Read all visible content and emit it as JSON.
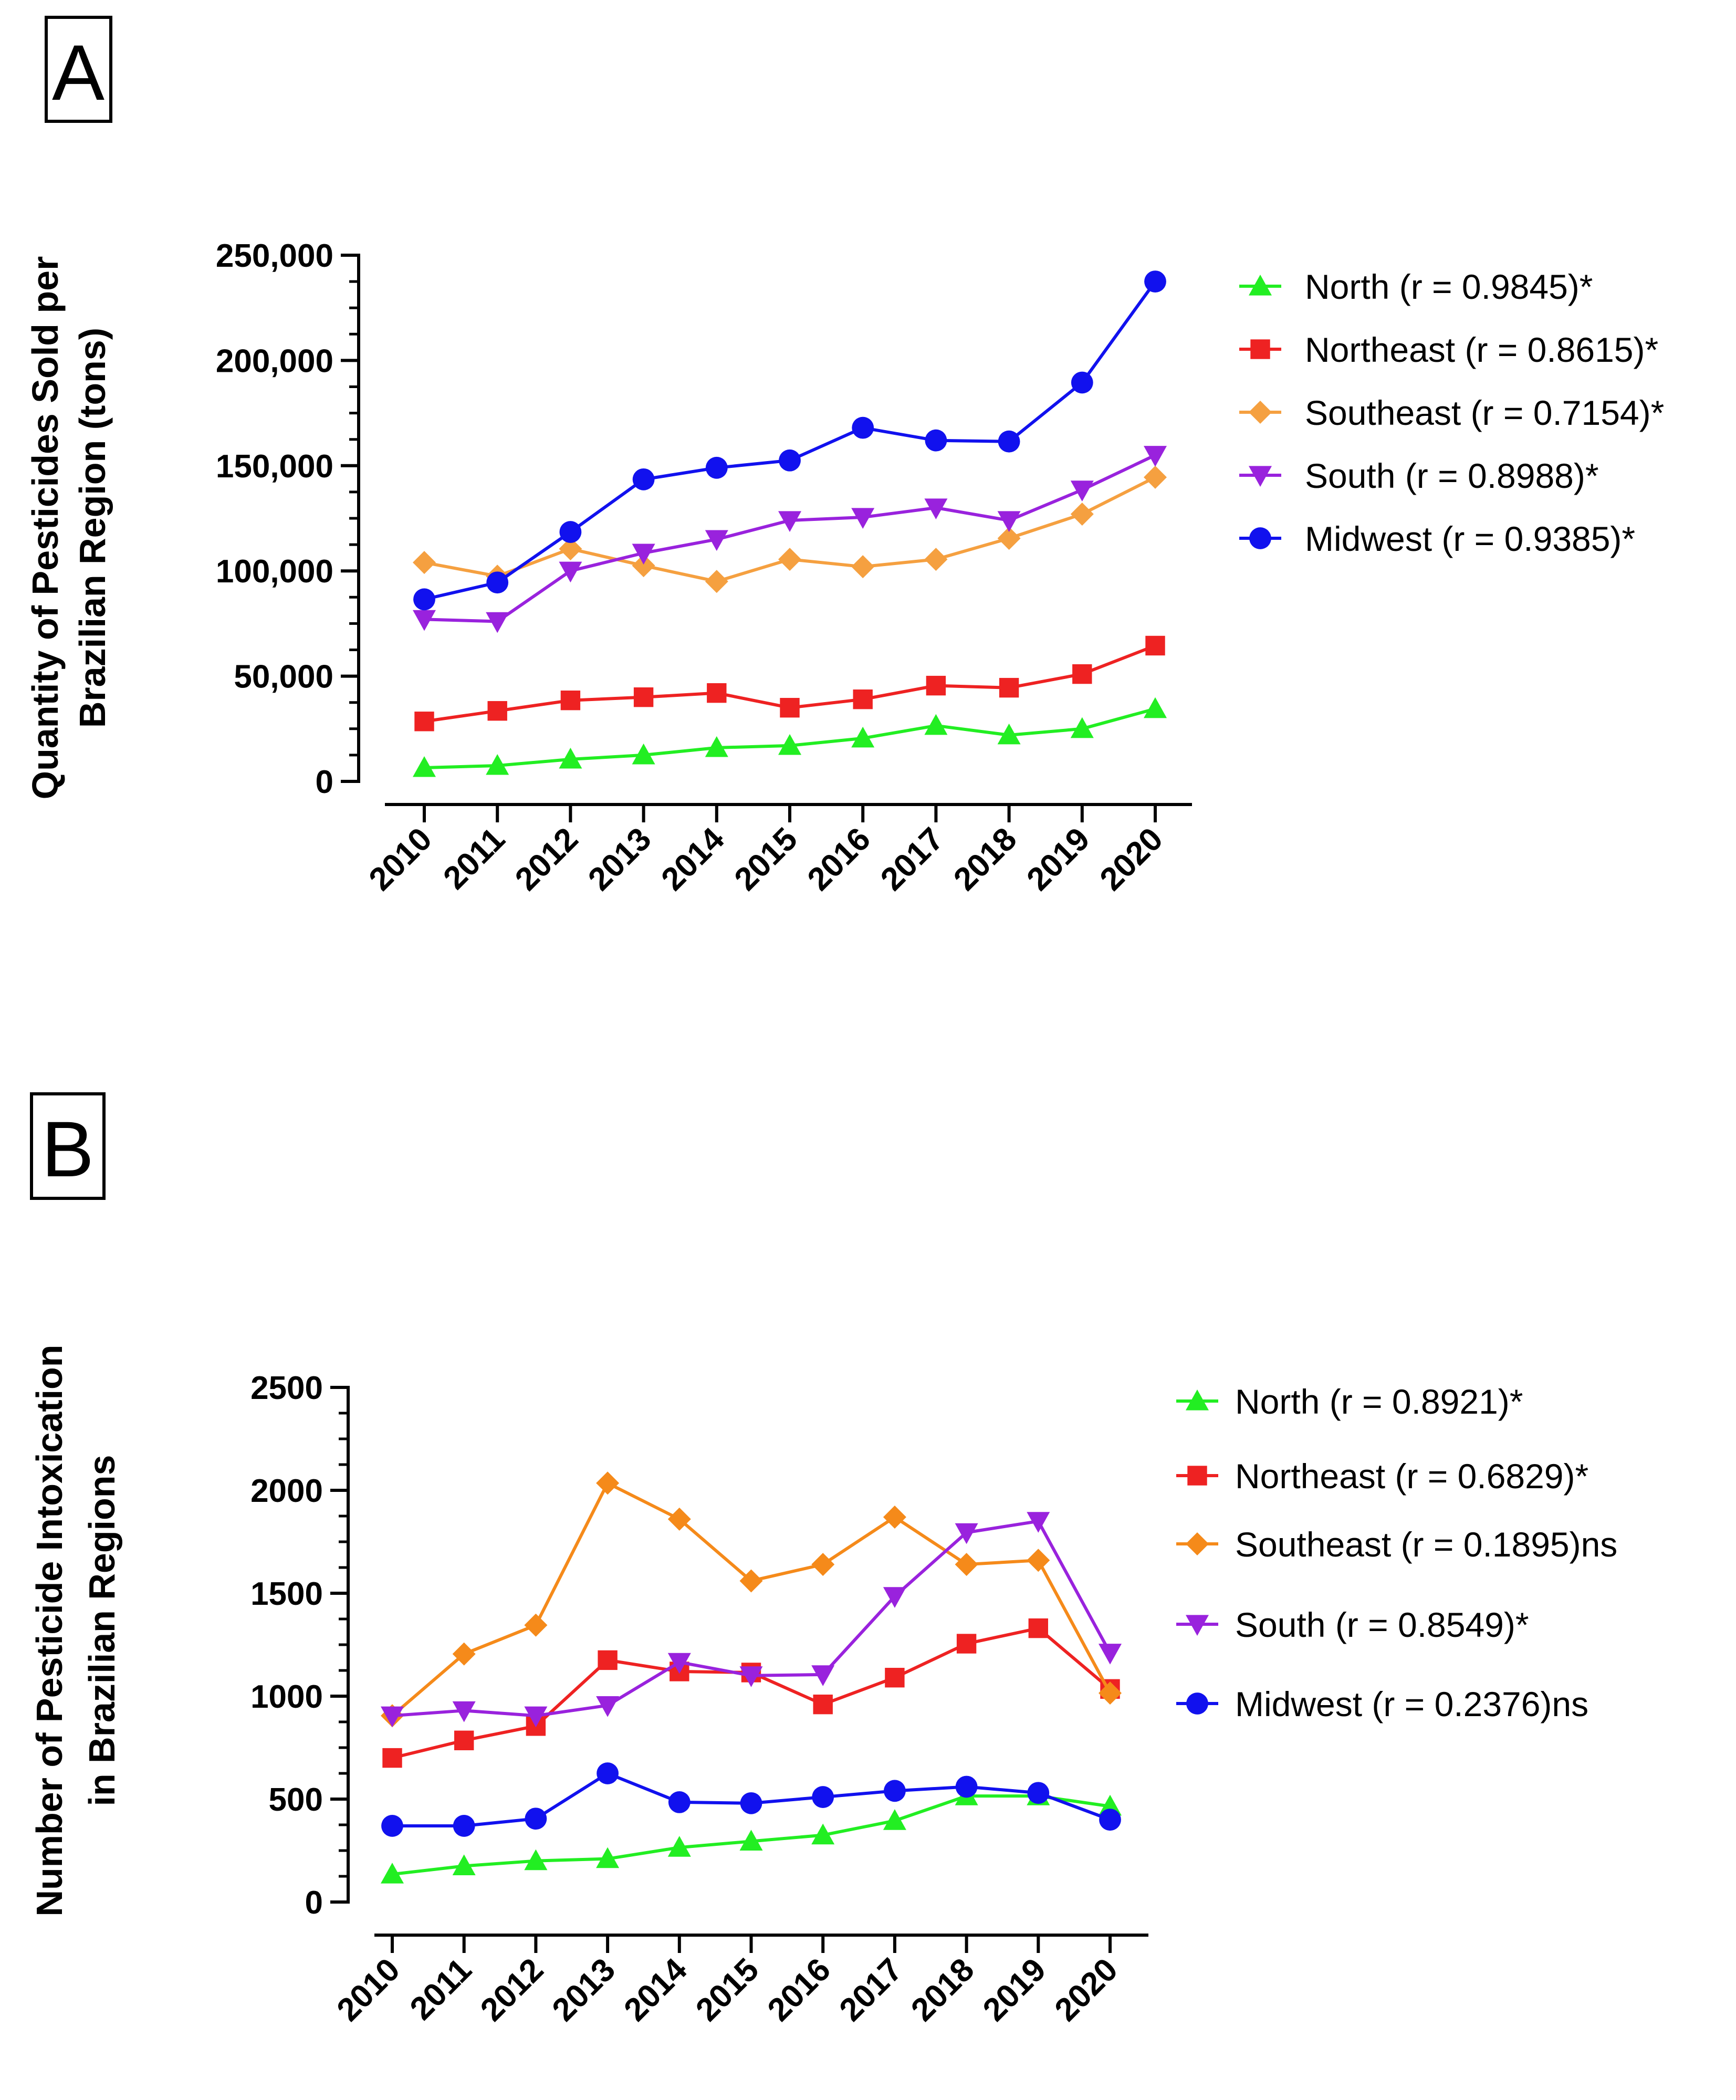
{
  "chart_data": [
    {
      "type": "line",
      "panel_label": "A",
      "title": "",
      "ylabel_lines": [
        "Quantity of Pesticides Sold per",
        "Brazilian Region (tons)"
      ],
      "xlabel": "",
      "x": [
        "2010",
        "2011",
        "2012",
        "2013",
        "2014",
        "2015",
        "2016",
        "2017",
        "2018",
        "2019",
        "2020"
      ],
      "ylim": [
        0,
        250000
      ],
      "yticks": [
        0,
        50000,
        100000,
        150000,
        200000,
        250000
      ],
      "ytick_labels": [
        "0",
        "50,000",
        "100,000",
        "150,000",
        "200,000",
        "250,000"
      ],
      "legend_position": "right",
      "series": [
        {
          "name": "North (r = 0.9845)*",
          "color": "#22ee22",
          "marker": "triangle-up",
          "values": [
            6500,
            7500,
            10500,
            12500,
            16000,
            17000,
            20500,
            26500,
            22000,
            25000,
            34500
          ]
        },
        {
          "name": "Northeast (r = 0.8615)*",
          "color": "#ee2222",
          "marker": "square",
          "values": [
            28500,
            33500,
            38500,
            40000,
            42000,
            35000,
            39000,
            45500,
            44500,
            51000,
            64500
          ]
        },
        {
          "name": "Southeast (r = 0.7154)*",
          "color": "#f5a040",
          "marker": "diamond",
          "values": [
            104000,
            97500,
            110500,
            102500,
            95000,
            105500,
            102000,
            105500,
            115500,
            127000,
            144500
          ]
        },
        {
          "name": "South (r = 0.8988)*",
          "color": "#9922dd",
          "marker": "triangle-down",
          "values": [
            77000,
            76000,
            100000,
            108500,
            115000,
            124000,
            125500,
            130000,
            124000,
            138500,
            155000
          ]
        },
        {
          "name": "Midwest (r = 0.9385)*",
          "color": "#1111ee",
          "marker": "circle",
          "values": [
            86500,
            94500,
            118500,
            143500,
            149000,
            152500,
            168000,
            162000,
            161500,
            189500,
            237500
          ]
        }
      ]
    },
    {
      "type": "line",
      "panel_label": "B",
      "title": "",
      "ylabel_lines": [
        "Number of Pesticide Intoxication",
        "in Brazilian Regions"
      ],
      "xlabel": "",
      "x": [
        "2010",
        "2011",
        "2012",
        "2013",
        "2014",
        "2015",
        "2016",
        "2017",
        "2018",
        "2019",
        "2020"
      ],
      "ylim": [
        0,
        2500
      ],
      "yticks": [
        0,
        500,
        1000,
        1500,
        2000,
        2500
      ],
      "ytick_labels": [
        "0",
        "500",
        "1000",
        "1500",
        "2000",
        "2500"
      ],
      "legend_position": "right",
      "series": [
        {
          "name": "North (r = 0.8921)*",
          "color": "#22ee22",
          "marker": "triangle-up",
          "values": [
            135,
            175,
            200,
            210,
            265,
            295,
            325,
            395,
            515,
            515,
            465
          ]
        },
        {
          "name": "Northeast (r = 0.6829)*",
          "color": "#ee2222",
          "marker": "square",
          "values": [
            700,
            785,
            855,
            1175,
            1120,
            1115,
            960,
            1090,
            1255,
            1330,
            1035
          ]
        },
        {
          "name": "Southeast (r = 0.1895)ns",
          "color": "#f58a1a",
          "marker": "diamond",
          "values": [
            905,
            1205,
            1345,
            2035,
            1860,
            1560,
            1640,
            1870,
            1640,
            1660,
            1015
          ]
        },
        {
          "name": "South (r = 0.8549)*",
          "color": "#9922dd",
          "marker": "triangle-down",
          "values": [
            905,
            930,
            905,
            955,
            1165,
            1100,
            1105,
            1485,
            1795,
            1850,
            1210
          ]
        },
        {
          "name": "Midwest (r = 0.2376)ns",
          "color": "#1111ee",
          "marker": "circle",
          "values": [
            370,
            370,
            405,
            625,
            485,
            480,
            510,
            540,
            560,
            530,
            400
          ]
        }
      ]
    }
  ]
}
